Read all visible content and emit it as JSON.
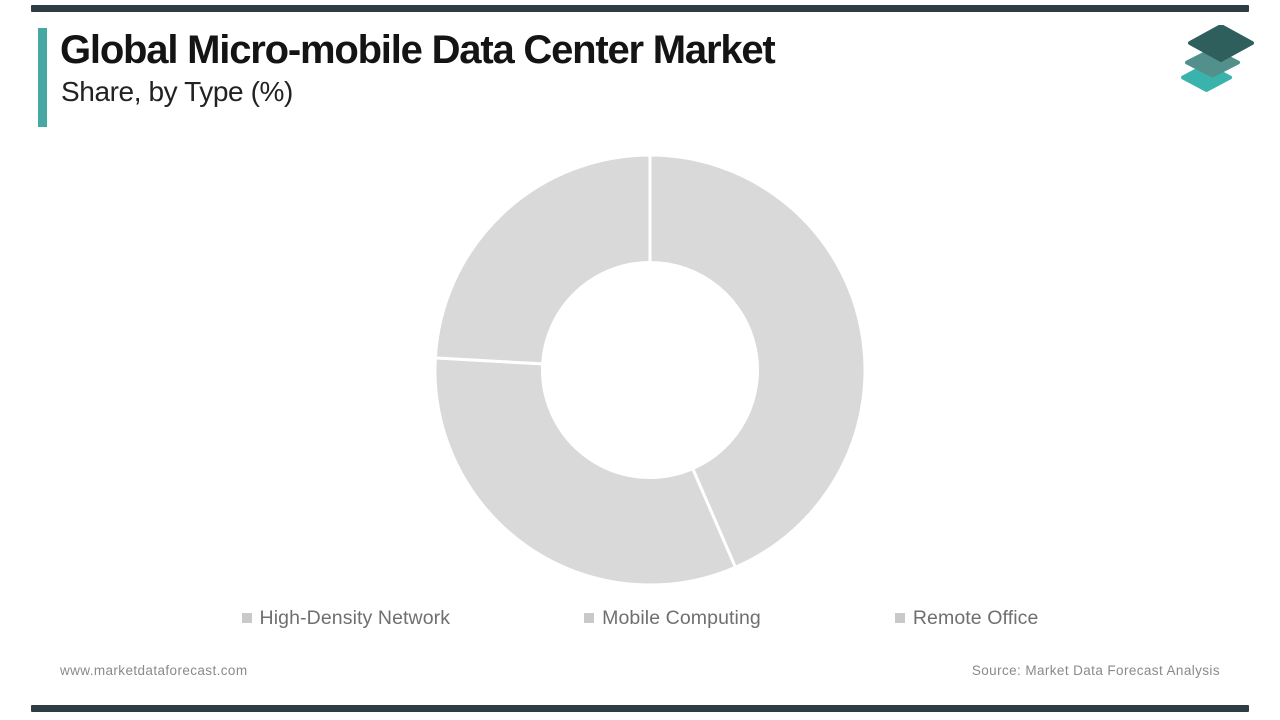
{
  "page": {
    "title": "Global Micro-mobile Data Center Market",
    "subtitle": "Share, by Type (%)",
    "accent_color": "#47a7a2",
    "edge_bar_color": "#2e3d44"
  },
  "logo": {
    "name": "market-data-forecast-logo",
    "layers": [
      {
        "position": "bottom",
        "color": "#3ab3ac"
      },
      {
        "position": "middle",
        "color": "#53908c"
      },
      {
        "position": "top",
        "color": "#2f5f5d"
      }
    ]
  },
  "chart_data": {
    "type": "pie",
    "variant": "donut",
    "title": "Global Micro-mobile Data Center Market Share, by Type (%)",
    "categories": [
      "High-Density Network",
      "Mobile Computing",
      "Remote Office"
    ],
    "values": [
      43.5,
      32.4,
      24.1
    ],
    "unit": "%",
    "start_angle_deg": 0,
    "direction": "clockwise",
    "inner_radius_ratio": 0.5,
    "slice_color": "#d9d9d9",
    "divider_color": "#ffffff",
    "data_labels": "none",
    "legend_position": "bottom"
  },
  "legend": {
    "marker_color": "#c9c9c9"
  },
  "footer": {
    "website": "www.marketdataforecast.com",
    "source": "Source: Market Data Forecast Analysis"
  }
}
